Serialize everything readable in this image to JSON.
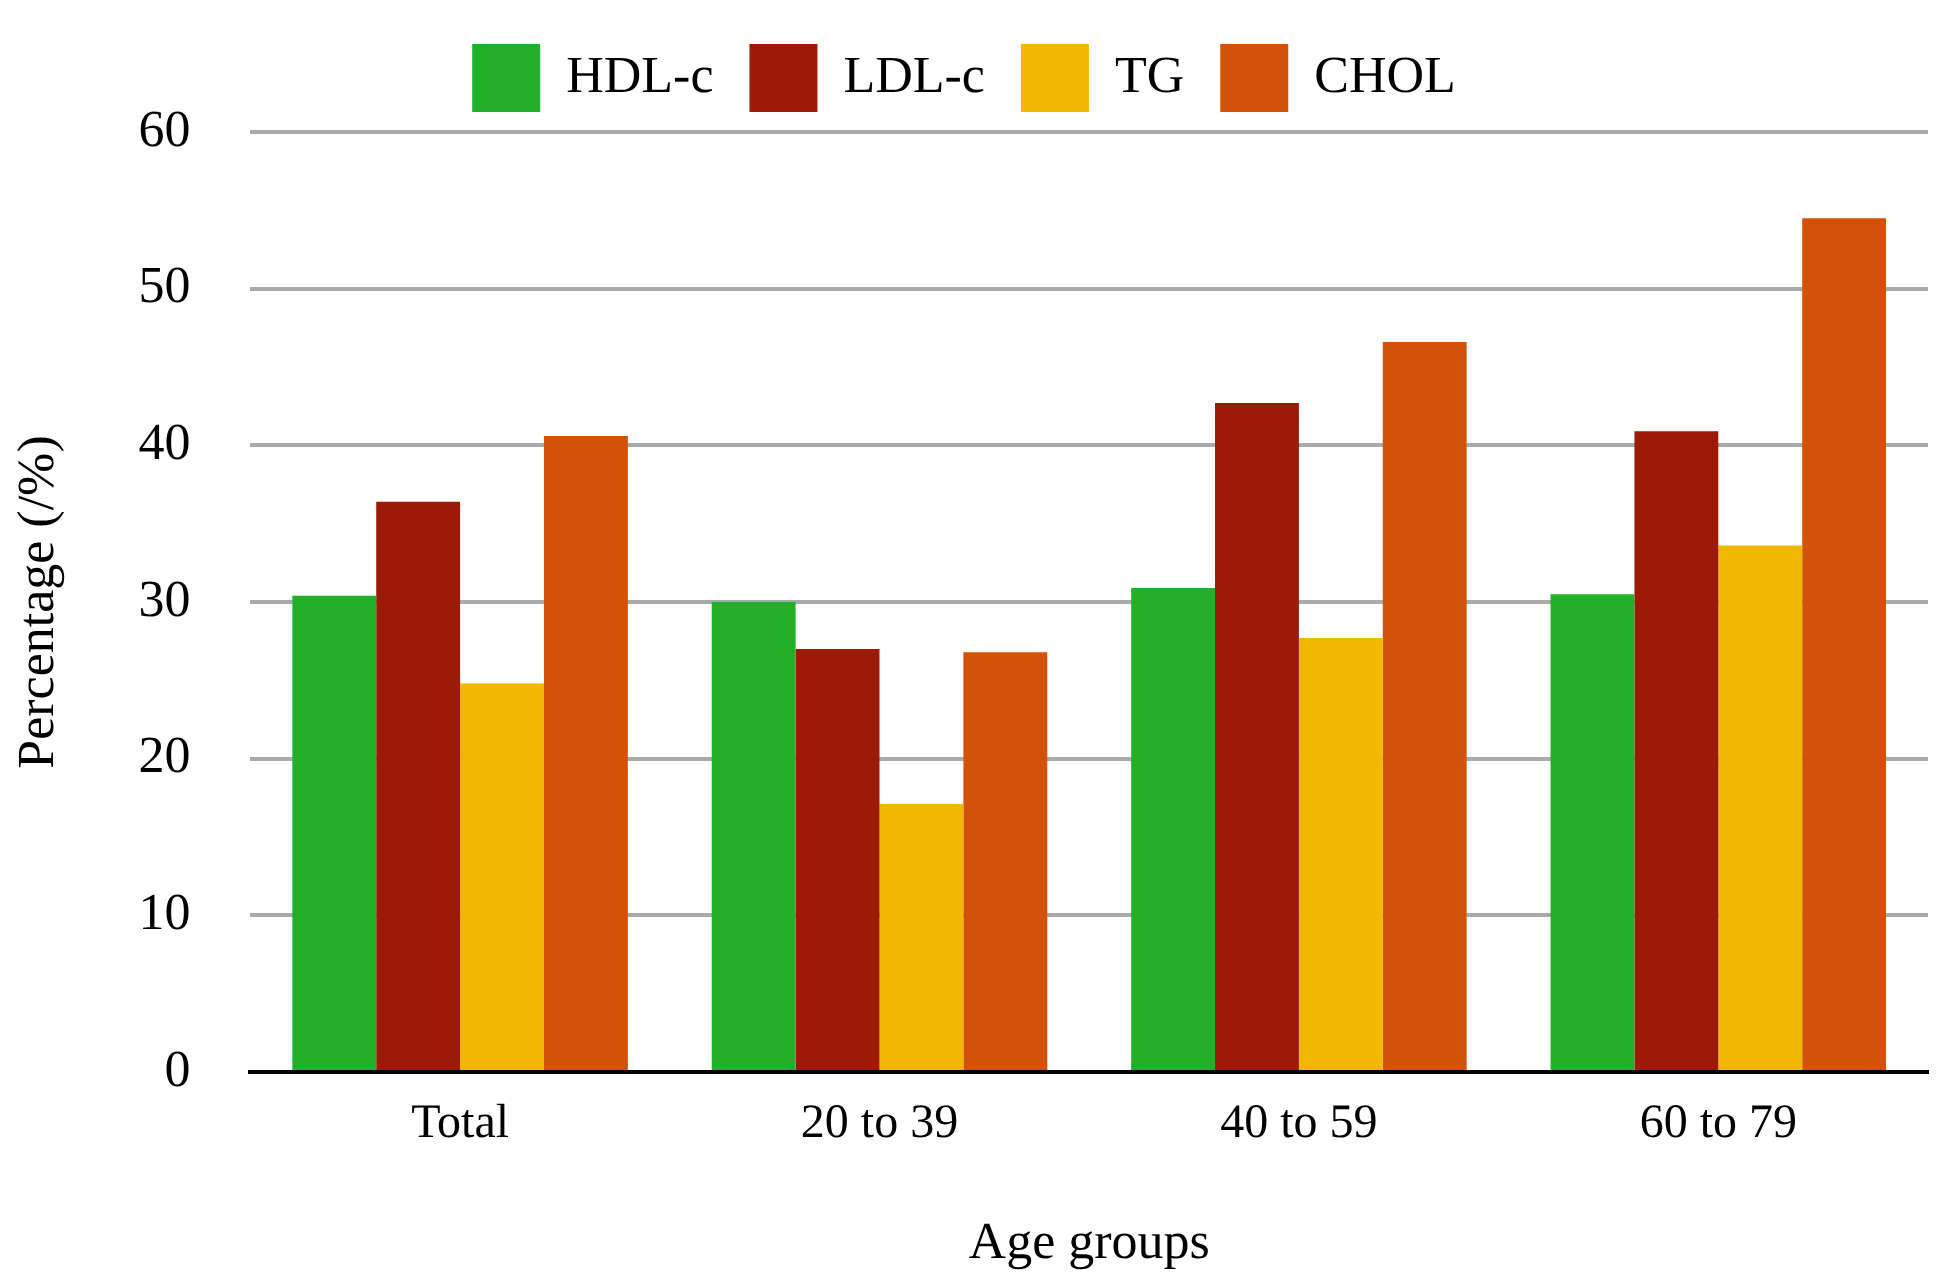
{
  "chart_data": {
    "type": "bar",
    "xlabel": "Age groups",
    "ylabel": "Percentage (/%)",
    "categories": [
      "Total",
      "20 to 39",
      "40 to 59",
      "60 to 79"
    ],
    "series": [
      {
        "name": "HDL-c",
        "color": "#22b02a",
        "values": [
          30.4,
          30.0,
          30.9,
          30.5
        ]
      },
      {
        "name": "LDL-c",
        "color": "#9b1a08",
        "values": [
          36.4,
          27.0,
          42.7,
          40.9
        ]
      },
      {
        "name": "TG",
        "color": "#f2b800",
        "values": [
          24.8,
          17.1,
          27.7,
          33.6
        ]
      },
      {
        "name": "CHOL",
        "color": "#d2520a",
        "values": [
          40.6,
          26.8,
          46.6,
          54.5
        ]
      }
    ],
    "ylim": [
      0,
      60
    ],
    "yticks": [
      0,
      10,
      20,
      30,
      40,
      50,
      60
    ],
    "grid": "y",
    "legend": "top"
  }
}
